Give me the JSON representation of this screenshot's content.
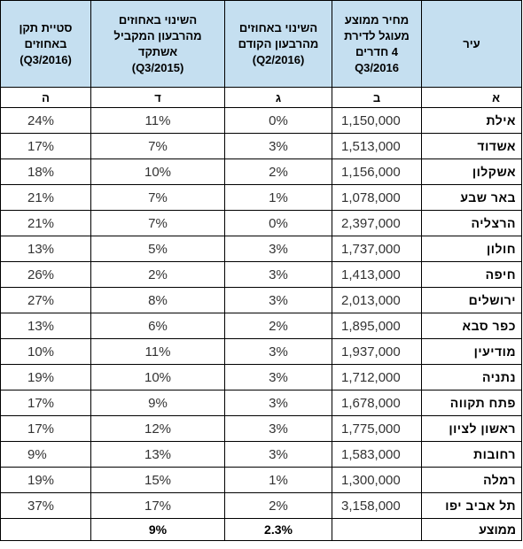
{
  "header": {
    "col_city": "עיר",
    "col_price": [
      "מחיר ממוצע",
      "מעוגל לדירת",
      "4 חדרים",
      "Q3/2016"
    ],
    "col_quarter_change": [
      "השינוי באחוזים",
      "מהרבעון הקודם",
      "(Q2/2016)"
    ],
    "col_year_change": [
      "השינוי באחוזים",
      "מהרבעון המקביל",
      "אשתקד",
      "(Q3/2015)"
    ],
    "col_deviation": [
      "סטיית תקן",
      "באחוזים",
      "(Q3/2016)"
    ]
  },
  "letters": {
    "city": "א",
    "price": "ב",
    "quarter": "ג",
    "year": "ד",
    "deviation": "ה"
  },
  "rows": [
    {
      "city": "אילת",
      "price": "1,150,000",
      "quarter": "0%",
      "year": "11%",
      "deviation": "24%"
    },
    {
      "city": "אשדוד",
      "price": "1,513,000",
      "quarter": "3%",
      "year": "7%",
      "deviation": "17%"
    },
    {
      "city": "אשקלון",
      "price": "1,156,000",
      "quarter": "2%",
      "year": "10%",
      "deviation": "18%"
    },
    {
      "city": "באר שבע",
      "price": "1,078,000",
      "quarter": "1%",
      "year": "7%",
      "deviation": "21%"
    },
    {
      "city": "הרצליה",
      "price": "2,397,000",
      "quarter": "0%",
      "year": "7%",
      "deviation": "21%"
    },
    {
      "city": "חולון",
      "price": "1,737,000",
      "quarter": "3%",
      "year": "5%",
      "deviation": "13%"
    },
    {
      "city": "חיפה",
      "price": "1,413,000",
      "quarter": "3%",
      "year": "2%",
      "deviation": "26%"
    },
    {
      "city": "ירושלים",
      "price": "2,013,000",
      "quarter": "3%",
      "year": "8%",
      "deviation": "27%"
    },
    {
      "city": "כפר סבא",
      "price": "1,895,000",
      "quarter": "2%",
      "year": "6%",
      "deviation": "13%"
    },
    {
      "city": "מודיעין",
      "price": "1,937,000",
      "quarter": "3%",
      "year": "11%",
      "deviation": "10%"
    },
    {
      "city": "נתניה",
      "price": "1,712,000",
      "quarter": "3%",
      "year": "10%",
      "deviation": "19%"
    },
    {
      "city": "פתח תקווה",
      "price": "1,678,000",
      "quarter": "3%",
      "year": "9%",
      "deviation": "17%"
    },
    {
      "city": "ראשון לציון",
      "price": "1,775,000",
      "quarter": "3%",
      "year": "12%",
      "deviation": "17%"
    },
    {
      "city": "רחובות",
      "price": "1,583,000",
      "quarter": "3%",
      "year": "13%",
      "deviation": "9%"
    },
    {
      "city": "רמלה",
      "price": "1,300,000",
      "quarter": "1%",
      "year": "15%",
      "deviation": "19%"
    },
    {
      "city": "תל אביב יפו",
      "price": "3,158,000",
      "quarter": "2%",
      "year": "17%",
      "deviation": "37%"
    }
  ],
  "average": {
    "label": "ממוצע",
    "quarter": "2.3%",
    "year": "9%"
  },
  "colors": {
    "header_bg": "#c5dff0",
    "border": "#000000"
  }
}
